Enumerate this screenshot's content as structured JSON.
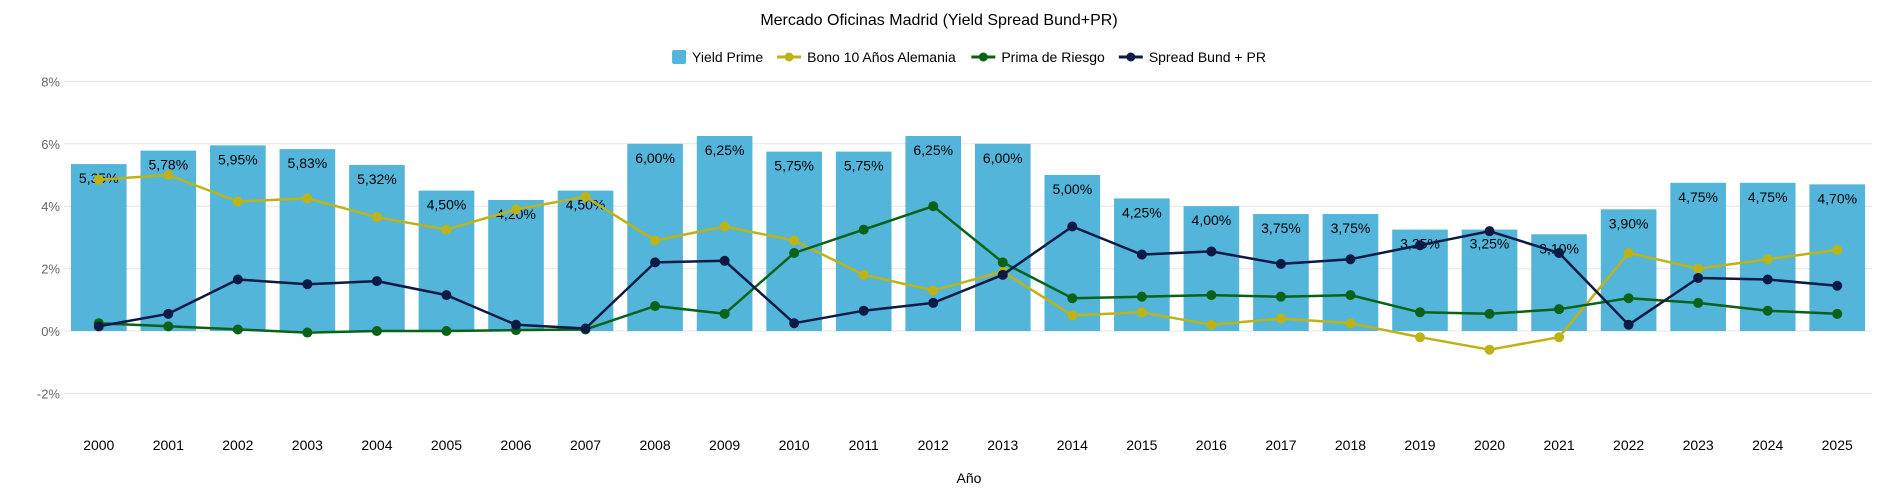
{
  "chart_data": {
    "type": "bar",
    "title": "Mercado Oficinas Madrid (Yield Spread Bund+PR)",
    "xlabel": "Año",
    "ylabel": "",
    "ylim": [
      -3,
      8
    ],
    "y_ticks": [
      8,
      6,
      4,
      2,
      0,
      -2
    ],
    "y_tick_labels": [
      "8%",
      "6%",
      "4%",
      "2%",
      "0%",
      "-2%"
    ],
    "grid": true,
    "legend_position": "top",
    "categories": [
      "2000",
      "2001",
      "2002",
      "2003",
      "2004",
      "2005",
      "2006",
      "2007",
      "2008",
      "2009",
      "2010",
      "2011",
      "2012",
      "2013",
      "2014",
      "2015",
      "2016",
      "2017",
      "2018",
      "2019",
      "2020",
      "2021",
      "2022",
      "2023",
      "2024",
      "2025"
    ],
    "series": [
      {
        "name": "Yield Prime",
        "kind": "bar",
        "color": "#52b5d9",
        "values": [
          5.35,
          5.78,
          5.95,
          5.83,
          5.32,
          4.5,
          4.2,
          4.5,
          6.0,
          6.25,
          5.75,
          5.75,
          6.25,
          6.0,
          5.0,
          4.25,
          4.0,
          3.75,
          3.75,
          3.25,
          3.25,
          3.1,
          3.9,
          4.75,
          4.75,
          4.7
        ],
        "labels": [
          "5,35%",
          "5,78%",
          "5,95%",
          "5,83%",
          "5,32%",
          "4,50%",
          "4,20%",
          "4,50%",
          "6,00%",
          "6,25%",
          "5,75%",
          "5,75%",
          "6,25%",
          "6,00%",
          "5,00%",
          "4,25%",
          "4,00%",
          "3,75%",
          "3,75%",
          "3,25%",
          "3,25%",
          "3,10%",
          "3,90%",
          "4,75%",
          "4,75%",
          "4,70%"
        ]
      },
      {
        "name": "Bono 10 Años Alemania",
        "kind": "line",
        "color": "#bdb314",
        "values": [
          4.85,
          5.0,
          4.15,
          4.25,
          3.65,
          3.25,
          3.9,
          4.3,
          2.9,
          3.35,
          2.9,
          1.8,
          1.3,
          1.9,
          0.5,
          0.6,
          0.2,
          0.4,
          0.25,
          -0.2,
          -0.6,
          -0.2,
          2.5,
          2.0,
          2.3,
          2.6
        ]
      },
      {
        "name": "Prima de Riesgo",
        "kind": "line",
        "color": "#086218",
        "values": [
          0.25,
          0.15,
          0.05,
          -0.05,
          0.0,
          0.0,
          0.03,
          0.05,
          0.8,
          0.55,
          2.5,
          3.25,
          4.0,
          2.2,
          1.05,
          1.1,
          1.15,
          1.1,
          1.15,
          0.6,
          0.55,
          0.7,
          1.05,
          0.9,
          0.65,
          0.55
        ]
      },
      {
        "name": "Spread Bund + PR",
        "kind": "line",
        "color": "#0c1a45",
        "values": [
          0.15,
          0.55,
          1.65,
          1.5,
          1.6,
          1.15,
          0.2,
          0.08,
          2.2,
          2.25,
          0.25,
          0.65,
          0.9,
          1.8,
          3.35,
          2.45,
          2.55,
          2.15,
          2.3,
          2.75,
          3.2,
          2.5,
          0.2,
          1.7,
          1.65,
          1.45
        ]
      }
    ]
  }
}
